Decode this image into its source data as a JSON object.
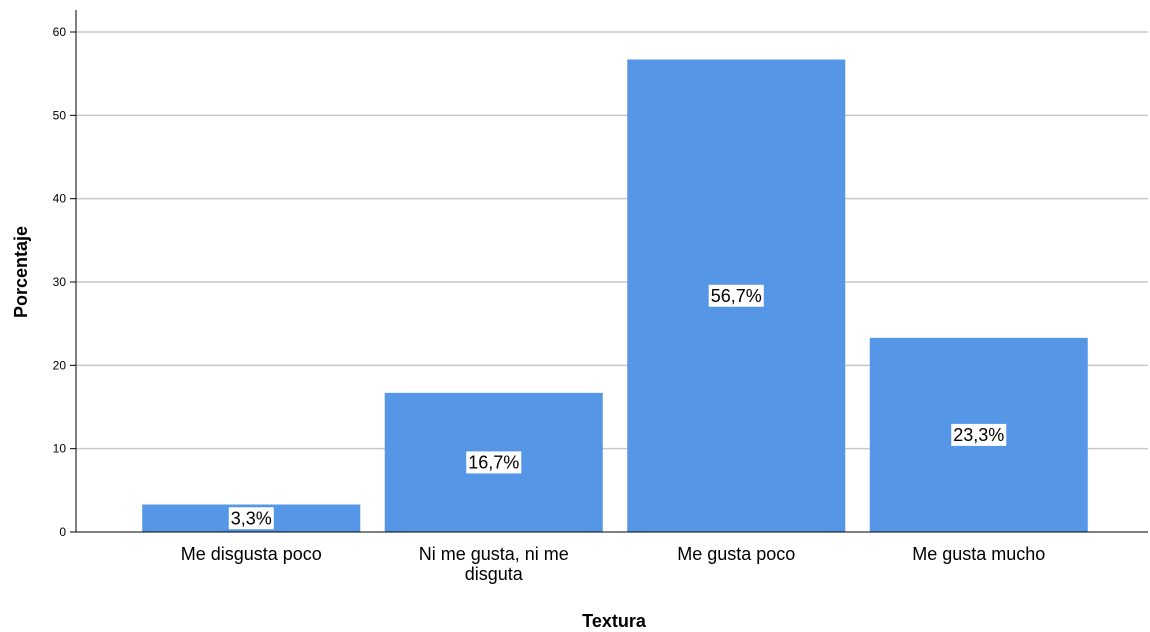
{
  "chart_data": {
    "type": "bar",
    "categories": [
      "Me disgusta poco",
      "Ni me gusta, ni me disguta",
      "Me gusta poco",
      "Me gusta mucho"
    ],
    "values": [
      3.3,
      16.7,
      56.7,
      23.3
    ],
    "data_labels": [
      "3,3%",
      "16,7%",
      "56,7%",
      "23,3%"
    ],
    "title": "",
    "xlabel": "Textura",
    "ylabel": "Porcentaje",
    "ylim": [
      0,
      60
    ],
    "yticks": [
      0,
      10,
      20,
      30,
      40,
      50,
      60
    ],
    "grid": true,
    "bar_color": "#5596e6",
    "grid_color": "#c8c8c8",
    "axis_color": "#000000"
  }
}
